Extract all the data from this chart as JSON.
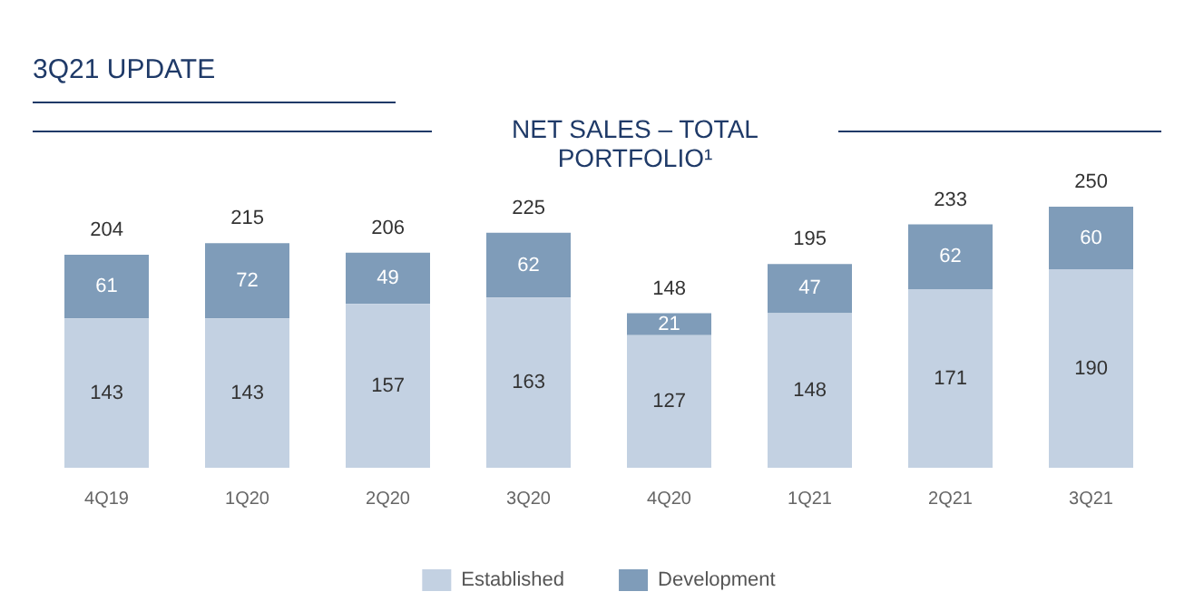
{
  "chart_data": {
    "type": "bar",
    "title": "NET SALES – TOTAL PORTFOLIO¹",
    "annotations": [
      "3Q21 UPDATE"
    ],
    "stacked": true,
    "data_labels": true,
    "legend": "bottom",
    "categories": [
      "4Q19",
      "1Q20",
      "2Q20",
      "3Q20",
      "4Q20",
      "1Q21",
      "2Q21",
      "3Q21"
    ],
    "series": [
      {
        "name": "Established",
        "color": "#c3d1e2",
        "values": [
          143,
          143,
          157,
          163,
          127,
          148,
          171,
          190
        ]
      },
      {
        "name": "Development",
        "color": "#7f9cb9",
        "values": [
          61,
          72,
          49,
          62,
          21,
          47,
          62,
          60
        ]
      }
    ],
    "totals": [
      "204",
      "215",
      "206",
      "225",
      "148",
      "195",
      "233",
      "250"
    ]
  }
}
